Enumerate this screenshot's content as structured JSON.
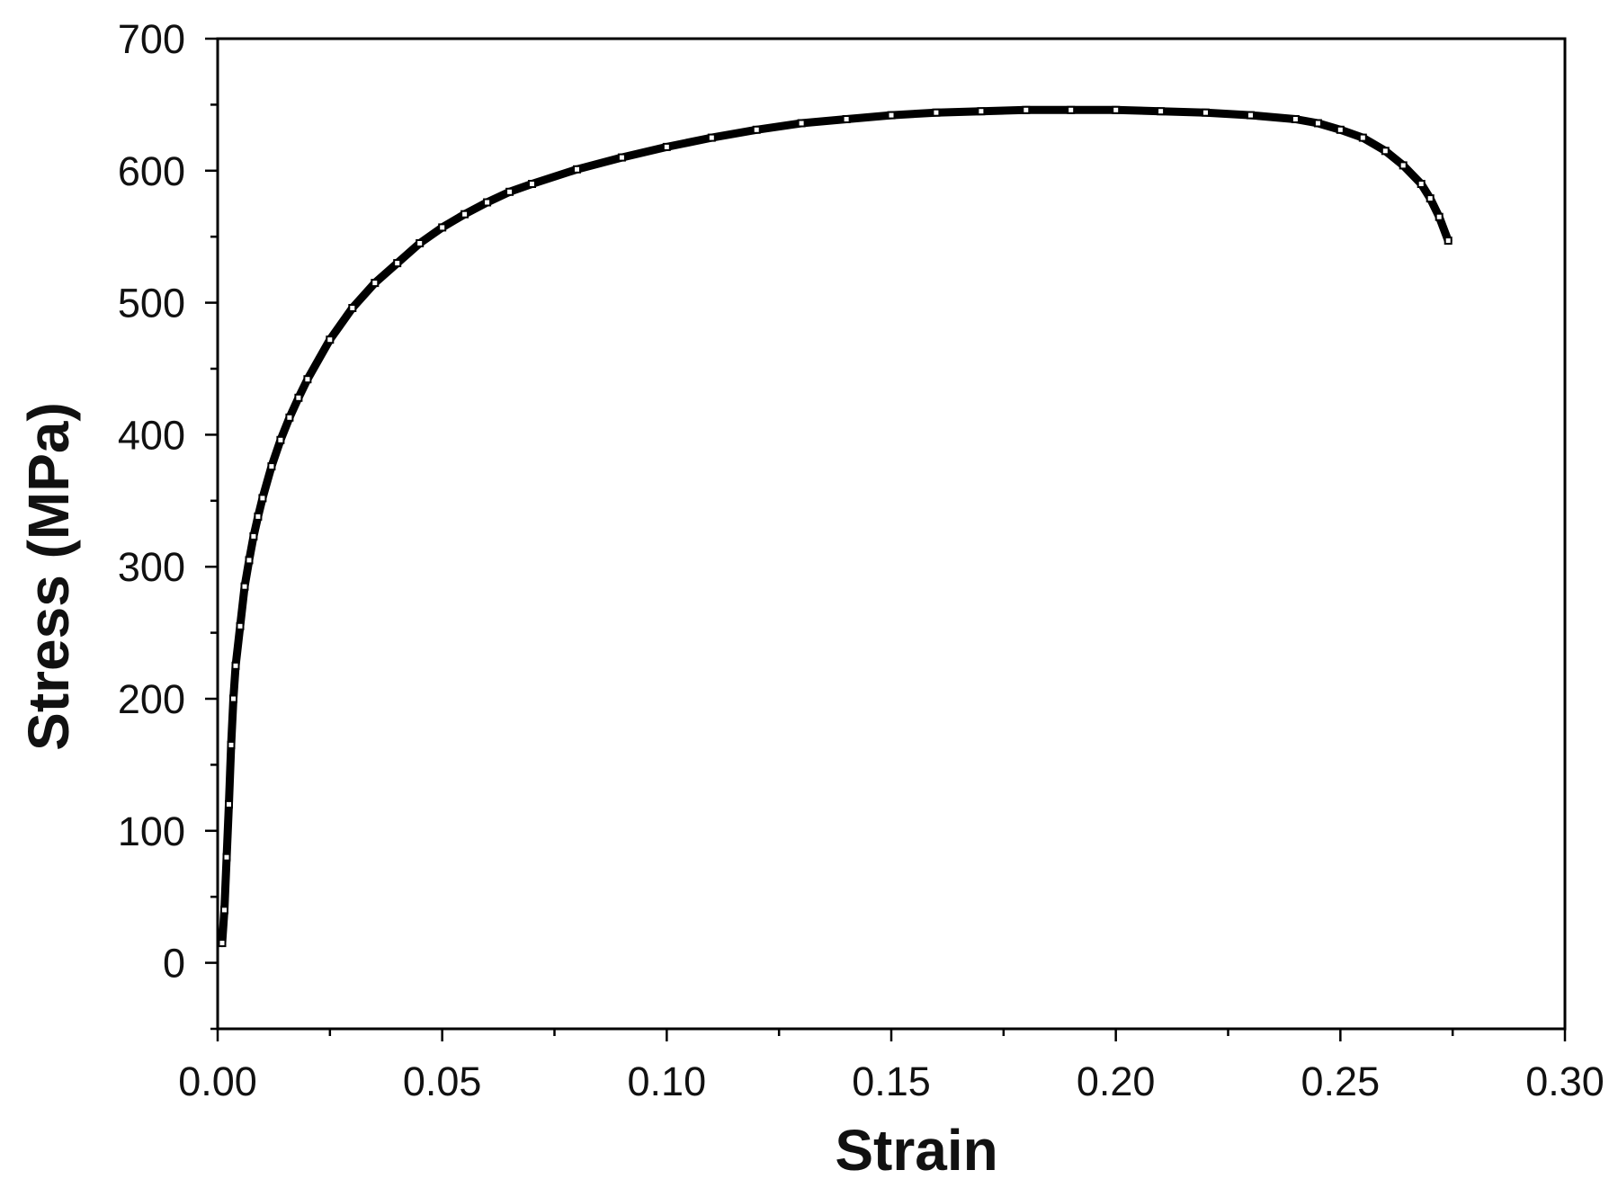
{
  "chart_data": {
    "type": "scatter",
    "xlabel": "Strain",
    "ylabel": "Stress (MPa)",
    "xlim": [
      0.0,
      0.3
    ],
    "ylim": [
      -50,
      700
    ],
    "xticks": [
      "0.00",
      "0.05",
      "0.10",
      "0.15",
      "0.20",
      "0.25",
      "0.30"
    ],
    "yticks": [
      "0",
      "100",
      "200",
      "300",
      "400",
      "500",
      "600",
      "700"
    ],
    "grid": false,
    "legend": "none",
    "marker": "open-square",
    "color": "#000000",
    "series": [
      {
        "x": [
          0.001,
          0.0015,
          0.002,
          0.0025,
          0.003,
          0.0035,
          0.004,
          0.005,
          0.006,
          0.007,
          0.008,
          0.009,
          0.01,
          0.012,
          0.014,
          0.016,
          0.018,
          0.02,
          0.025,
          0.03,
          0.035,
          0.04,
          0.045,
          0.05,
          0.055,
          0.06,
          0.065,
          0.07,
          0.08,
          0.09,
          0.1,
          0.11,
          0.12,
          0.13,
          0.14,
          0.15,
          0.16,
          0.17,
          0.18,
          0.19,
          0.2,
          0.21,
          0.22,
          0.23,
          0.24,
          0.245,
          0.25,
          0.255,
          0.26,
          0.264,
          0.268,
          0.27,
          0.272,
          0.274
        ],
        "y": [
          15,
          40,
          80,
          120,
          165,
          200,
          225,
          255,
          285,
          305,
          323,
          338,
          352,
          376,
          396,
          413,
          428,
          442,
          472,
          496,
          515,
          530,
          545,
          557,
          567,
          576,
          584,
          590,
          601,
          610,
          618,
          625,
          631,
          636,
          639,
          642,
          644,
          645,
          646,
          646,
          646,
          645,
          644,
          642,
          639,
          636,
          631,
          625,
          615,
          604,
          590,
          579,
          565,
          547
        ]
      }
    ]
  }
}
